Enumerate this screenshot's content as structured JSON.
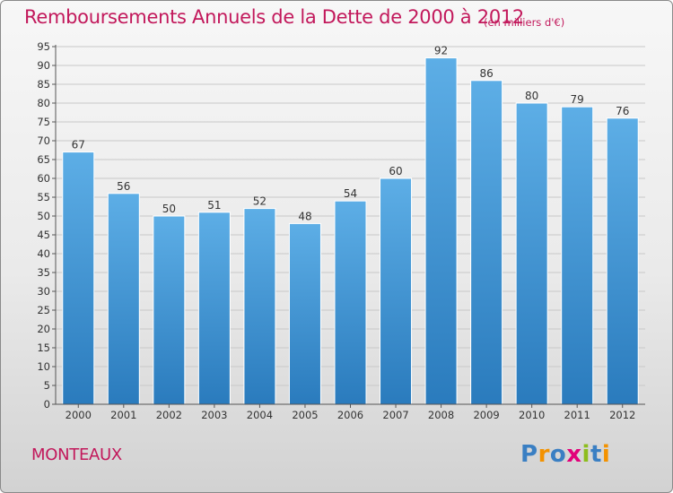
{
  "title": "Remboursements Annuels de la Dette de 2000 à 2012",
  "unit": "(en milliers d'€)",
  "town": "MONTEAUX",
  "logo": {
    "text": "Proxiti",
    "letters": [
      {
        "ch": "P",
        "color": "#3a7fc3"
      },
      {
        "ch": "r",
        "color": "#f39200"
      },
      {
        "ch": "o",
        "color": "#3a7fc3"
      },
      {
        "ch": "x",
        "color": "#e2007a"
      },
      {
        "ch": "i",
        "color": "#8dbd1d"
      },
      {
        "ch": "t",
        "color": "#3a7fc3"
      },
      {
        "ch": "i",
        "color": "#f39200"
      }
    ]
  },
  "colors": {
    "title": "#c2185b",
    "bar_top": "#5daee6",
    "bar_bottom": "#2a7bbd",
    "grid": "#c8c8c8"
  },
  "chart_data": {
    "type": "bar",
    "categories": [
      "2000",
      "2001",
      "2002",
      "2003",
      "2004",
      "2005",
      "2006",
      "2007",
      "2008",
      "2009",
      "2010",
      "2011",
      "2012"
    ],
    "values": [
      67,
      56,
      50,
      51,
      52,
      48,
      54,
      60,
      92,
      86,
      80,
      79,
      76
    ],
    "ylim": [
      0,
      95
    ],
    "yticks": [
      0,
      5,
      10,
      15,
      20,
      25,
      30,
      35,
      40,
      45,
      50,
      55,
      60,
      65,
      70,
      75,
      80,
      85,
      90,
      95
    ],
    "grid": "horizontal",
    "xlabel": "",
    "ylabel": ""
  }
}
